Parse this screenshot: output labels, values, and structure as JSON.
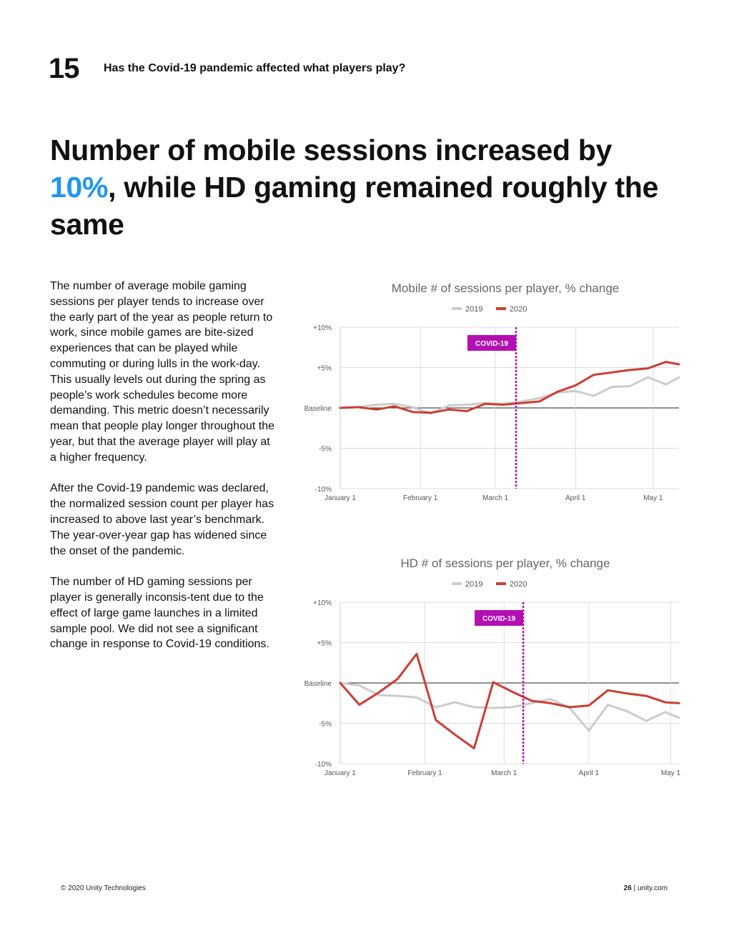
{
  "header": {
    "chapter_number": "15",
    "chapter_title": "Has the Covid-19 pandemic affected what players play?"
  },
  "headline": {
    "part1": "Number of mobile sessions increased by ",
    "highlight": "10%",
    "part2": ", while HD gaming remained roughly the same"
  },
  "body": {
    "paragraphs": [
      "The number of average mobile gaming sessions per player tends to increase over the early part of the year as people return to work, since mobile games are bite-sized experiences that can be played while commuting or during lulls in the work-day. This usually levels out during the spring as people’s work schedules become more demanding. This metric doesn’t necessarily mean that people play longer throughout the year, but that the average player will play at a higher frequency.",
      "After the Covid-19 pandemic was declared, the normalized session count per player has increased to above last year’s benchmark. The year-over-year gap has widened since the onset of the pandemic.",
      "The number of HD gaming sessions per player is generally inconsis-tent due to the effect of large game launches in a limited sample pool. We did not see a significant change in response to Covid-19 conditions."
    ]
  },
  "colors": {
    "series_2019": "#cccccc",
    "series_2020": "#cc3d33",
    "covid_marker": "#b30fb3",
    "headline_highlight": "#2196f3"
  },
  "chart_data": [
    {
      "type": "line",
      "title": "Mobile # of sessions per player, % change",
      "x_unit": "days since January 1",
      "x_ticks": [
        {
          "x": 0,
          "label": "January 1"
        },
        {
          "x": 31,
          "label": "February 1"
        },
        {
          "x": 60,
          "label": "March 1"
        },
        {
          "x": 91,
          "label": "April 1"
        },
        {
          "x": 121,
          "label": "May 1"
        }
      ],
      "y_ticks": [
        {
          "y": 10,
          "label": "+10%"
        },
        {
          "y": 5,
          "label": "+5%"
        },
        {
          "y": 0,
          "label": "Baseline"
        },
        {
          "y": -5,
          "label": "-5%"
        },
        {
          "y": -10,
          "label": "-10%"
        }
      ],
      "xlim": [
        0,
        131
      ],
      "ylim": [
        -10,
        10
      ],
      "legend": {
        "position": "top-center",
        "entries": [
          "2019",
          "2020"
        ]
      },
      "annotation": {
        "label": "COVID-19",
        "x": 68
      },
      "series": [
        {
          "name": "2019",
          "x": [
            0,
            7,
            14,
            21,
            28,
            35,
            42,
            49,
            56,
            63,
            70,
            77,
            84,
            91,
            98,
            105,
            112,
            119,
            126,
            131
          ],
          "y": [
            0,
            0.1,
            0.4,
            0.5,
            0.1,
            -0.7,
            0.3,
            0.4,
            0.6,
            0.5,
            0.8,
            1.2,
            1.9,
            2.1,
            1.5,
            2.6,
            2.7,
            3.8,
            2.9,
            3.8
          ]
        },
        {
          "name": "2020",
          "x": [
            0,
            7,
            14,
            21,
            28,
            35,
            42,
            49,
            56,
            63,
            70,
            77,
            84,
            91,
            98,
            105,
            112,
            119,
            126,
            131
          ],
          "y": [
            0,
            0.1,
            -0.2,
            0.2,
            -0.5,
            -0.6,
            -0.2,
            -0.4,
            0.5,
            0.4,
            0.6,
            0.8,
            2.0,
            2.8,
            4.1,
            4.4,
            4.7,
            4.9,
            5.7,
            5.4
          ]
        }
      ]
    },
    {
      "type": "line",
      "title": "HD # of sessions per player, % change",
      "x_unit": "days since January 1",
      "x_ticks": [
        {
          "x": 0,
          "label": "January 1"
        },
        {
          "x": 31,
          "label": "February 1"
        },
        {
          "x": 60,
          "label": "March 1"
        },
        {
          "x": 91,
          "label": "April 1"
        },
        {
          "x": 121,
          "label": "May 1"
        }
      ],
      "y_ticks": [
        {
          "y": 10,
          "label": "+10%"
        },
        {
          "y": 5,
          "label": "+5%"
        },
        {
          "y": 0,
          "label": "Baseline"
        },
        {
          "y": -5,
          "label": "-5%"
        },
        {
          "y": -10,
          "label": "-10%"
        }
      ],
      "xlim": [
        0,
        124
      ],
      "ylim": [
        -10,
        10
      ],
      "legend": {
        "position": "top-center",
        "entries": [
          "2019",
          "2020"
        ]
      },
      "annotation": {
        "label": "COVID-19",
        "x": 67
      },
      "series": [
        {
          "name": "2019",
          "x": [
            0,
            7,
            14,
            21,
            28,
            35,
            42,
            49,
            56,
            63,
            70,
            77,
            84,
            91,
            98,
            105,
            112,
            119,
            124
          ],
          "y": [
            0,
            -0.3,
            -1.5,
            -1.6,
            -1.8,
            -3,
            -2.4,
            -3,
            -3.1,
            -3,
            -2.5,
            -2,
            -3.1,
            -5.9,
            -2.7,
            -3.5,
            -4.7,
            -3.6,
            -4.3
          ]
        },
        {
          "name": "2020",
          "x": [
            0,
            7,
            14,
            21,
            28,
            35,
            42,
            49,
            56,
            63,
            70,
            77,
            84,
            91,
            98,
            105,
            112,
            119,
            124
          ],
          "y": [
            0,
            -2.7,
            -1.2,
            0.5,
            3.6,
            -4.6,
            -6.4,
            -8.1,
            0.1,
            -1.1,
            -2.2,
            -2.5,
            -3,
            -2.8,
            -0.9,
            -1.3,
            -1.6,
            -2.4,
            -2.5
          ]
        }
      ]
    }
  ],
  "footer": {
    "copyright": "© 2020 Unity Technologies",
    "page_number": "26",
    "site": "unity.com"
  }
}
